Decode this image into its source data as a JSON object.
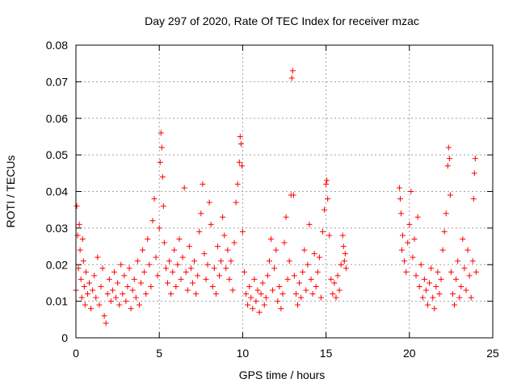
{
  "chart_data": {
    "type": "scatter",
    "title": "Day 297 of 2020, Rate Of TEC Index for receiver mzac",
    "xlabel": "GPS time / hours",
    "ylabel": "ROTI / TECUs",
    "xlim": [
      0,
      25
    ],
    "ylim": [
      0,
      0.08
    ],
    "xticks": [
      0,
      5,
      10,
      15,
      20,
      25
    ],
    "xtick_labels": [
      "0",
      "5",
      "10",
      "15",
      "20",
      "25"
    ],
    "yticks": [
      0,
      0.01,
      0.02,
      0.03,
      0.04,
      0.05,
      0.06,
      0.07,
      0.08
    ],
    "ytick_labels": [
      "0",
      "0.01",
      "0.02",
      "0.03",
      "0.04",
      "0.05",
      "0.06",
      "0.07",
      "0.08"
    ],
    "grid": true,
    "marker": "+",
    "color": "#ff0000",
    "series": [
      {
        "points": [
          [
            0.0,
            0.013
          ],
          [
            0.05,
            0.036
          ],
          [
            0.1,
            0.028
          ],
          [
            0.15,
            0.019
          ],
          [
            0.2,
            0.031
          ],
          [
            0.25,
            0.024
          ],
          [
            0.3,
            0.016
          ],
          [
            0.35,
            0.011
          ],
          [
            0.4,
            0.027
          ],
          [
            0.45,
            0.021
          ],
          [
            0.5,
            0.014
          ],
          [
            0.55,
            0.009
          ],
          [
            0.6,
            0.018
          ],
          [
            0.7,
            0.012
          ],
          [
            0.8,
            0.015
          ],
          [
            0.9,
            0.008
          ],
          [
            1.0,
            0.013
          ],
          [
            1.1,
            0.017
          ],
          [
            1.2,
            0.011
          ],
          [
            1.3,
            0.022
          ],
          [
            1.4,
            0.009
          ],
          [
            1.5,
            0.014
          ],
          [
            1.6,
            0.019
          ],
          [
            1.7,
            0.006
          ],
          [
            1.8,
            0.004
          ],
          [
            1.9,
            0.012
          ],
          [
            2.0,
            0.016
          ],
          [
            2.1,
            0.01
          ],
          [
            2.2,
            0.013
          ],
          [
            2.3,
            0.018
          ],
          [
            2.4,
            0.011
          ],
          [
            2.5,
            0.015
          ],
          [
            2.6,
            0.009
          ],
          [
            2.7,
            0.02
          ],
          [
            2.8,
            0.012
          ],
          [
            2.9,
            0.017
          ],
          [
            3.0,
            0.01
          ],
          [
            3.1,
            0.014
          ],
          [
            3.2,
            0.019
          ],
          [
            3.3,
            0.008
          ],
          [
            3.4,
            0.013
          ],
          [
            3.5,
            0.016
          ],
          [
            3.6,
            0.011
          ],
          [
            3.7,
            0.021
          ],
          [
            3.8,
            0.009
          ],
          [
            3.9,
            0.015
          ],
          [
            4.0,
            0.024
          ],
          [
            4.1,
            0.018
          ],
          [
            4.2,
            0.012
          ],
          [
            4.3,
            0.027
          ],
          [
            4.4,
            0.02
          ],
          [
            4.5,
            0.014
          ],
          [
            4.6,
            0.032
          ],
          [
            4.7,
            0.038
          ],
          [
            4.8,
            0.022
          ],
          [
            4.9,
            0.017
          ],
          [
            5.0,
            0.03
          ],
          [
            5.05,
            0.048
          ],
          [
            5.1,
            0.056
          ],
          [
            5.15,
            0.052
          ],
          [
            5.2,
            0.044
          ],
          [
            5.25,
            0.036
          ],
          [
            5.3,
            0.026
          ],
          [
            5.4,
            0.019
          ],
          [
            5.5,
            0.015
          ],
          [
            5.6,
            0.021
          ],
          [
            5.7,
            0.012
          ],
          [
            5.8,
            0.018
          ],
          [
            5.9,
            0.024
          ],
          [
            6.0,
            0.014
          ],
          [
            6.1,
            0.02
          ],
          [
            6.2,
            0.027
          ],
          [
            6.3,
            0.016
          ],
          [
            6.4,
            0.022
          ],
          [
            6.5,
            0.041
          ],
          [
            6.6,
            0.018
          ],
          [
            6.7,
            0.013
          ],
          [
            6.8,
            0.025
          ],
          [
            6.9,
            0.019
          ],
          [
            7.0,
            0.015
          ],
          [
            7.1,
            0.021
          ],
          [
            7.2,
            0.012
          ],
          [
            7.3,
            0.017
          ],
          [
            7.4,
            0.029
          ],
          [
            7.5,
            0.034
          ],
          [
            7.6,
            0.042
          ],
          [
            7.7,
            0.023
          ],
          [
            7.8,
            0.016
          ],
          [
            7.9,
            0.02
          ],
          [
            8.0,
            0.037
          ],
          [
            8.1,
            0.031
          ],
          [
            8.2,
            0.014
          ],
          [
            8.3,
            0.019
          ],
          [
            8.4,
            0.012
          ],
          [
            8.5,
            0.025
          ],
          [
            8.6,
            0.017
          ],
          [
            8.7,
            0.021
          ],
          [
            8.8,
            0.033
          ],
          [
            8.9,
            0.028
          ],
          [
            9.0,
            0.019
          ],
          [
            9.1,
            0.024
          ],
          [
            9.2,
            0.016
          ],
          [
            9.3,
            0.021
          ],
          [
            9.4,
            0.013
          ],
          [
            9.5,
            0.026
          ],
          [
            9.6,
            0.037
          ],
          [
            9.7,
            0.042
          ],
          [
            9.8,
            0.048
          ],
          [
            9.85,
            0.055
          ],
          [
            9.9,
            0.053
          ],
          [
            9.95,
            0.047
          ],
          [
            10.0,
            0.029
          ],
          [
            10.1,
            0.018
          ],
          [
            10.2,
            0.012
          ],
          [
            10.3,
            0.009
          ],
          [
            10.4,
            0.014
          ],
          [
            10.5,
            0.011
          ],
          [
            10.6,
            0.008
          ],
          [
            10.7,
            0.016
          ],
          [
            10.8,
            0.01
          ],
          [
            10.9,
            0.013
          ],
          [
            11.0,
            0.007
          ],
          [
            11.1,
            0.012
          ],
          [
            11.2,
            0.015
          ],
          [
            11.3,
            0.009
          ],
          [
            11.4,
            0.011
          ],
          [
            11.5,
            0.017
          ],
          [
            11.6,
            0.021
          ],
          [
            11.7,
            0.027
          ],
          [
            11.8,
            0.013
          ],
          [
            11.9,
            0.019
          ],
          [
            12.0,
            0.024
          ],
          [
            12.1,
            0.01
          ],
          [
            12.2,
            0.014
          ],
          [
            12.3,
            0.008
          ],
          [
            12.4,
            0.012
          ],
          [
            12.5,
            0.026
          ],
          [
            12.6,
            0.033
          ],
          [
            12.7,
            0.016
          ],
          [
            12.8,
            0.021
          ],
          [
            12.9,
            0.039
          ],
          [
            12.95,
            0.071
          ],
          [
            13.0,
            0.073
          ],
          [
            13.05,
            0.039
          ],
          [
            13.1,
            0.017
          ],
          [
            13.2,
            0.012
          ],
          [
            13.3,
            0.009
          ],
          [
            13.4,
            0.015
          ],
          [
            13.5,
            0.011
          ],
          [
            13.6,
            0.018
          ],
          [
            13.7,
            0.024
          ],
          [
            13.8,
            0.013
          ],
          [
            13.9,
            0.02
          ],
          [
            14.0,
            0.031
          ],
          [
            14.1,
            0.016
          ],
          [
            14.2,
            0.012
          ],
          [
            14.3,
            0.023
          ],
          [
            14.4,
            0.014
          ],
          [
            14.5,
            0.018
          ],
          [
            14.6,
            0.022
          ],
          [
            14.7,
            0.011
          ],
          [
            14.8,
            0.029
          ],
          [
            14.9,
            0.035
          ],
          [
            15.0,
            0.042
          ],
          [
            15.05,
            0.043
          ],
          [
            15.1,
            0.038
          ],
          [
            15.2,
            0.028
          ],
          [
            15.3,
            0.016
          ],
          [
            15.4,
            0.012
          ],
          [
            15.5,
            0.015
          ],
          [
            15.6,
            0.011
          ],
          [
            15.7,
            0.017
          ],
          [
            15.8,
            0.013
          ],
          [
            15.9,
            0.02
          ],
          [
            16.0,
            0.028
          ],
          [
            16.05,
            0.025
          ],
          [
            16.1,
            0.021
          ],
          [
            16.15,
            0.023
          ],
          [
            16.2,
            0.019
          ],
          [
            19.4,
            0.041
          ],
          [
            19.45,
            0.038
          ],
          [
            19.5,
            0.034
          ],
          [
            19.55,
            0.024
          ],
          [
            19.6,
            0.028
          ],
          [
            19.7,
            0.021
          ],
          [
            19.8,
            0.018
          ],
          [
            19.9,
            0.026
          ],
          [
            20.0,
            0.031
          ],
          [
            20.1,
            0.04
          ],
          [
            20.2,
            0.022
          ],
          [
            20.3,
            0.027
          ],
          [
            20.4,
            0.017
          ],
          [
            20.5,
            0.033
          ],
          [
            20.6,
            0.014
          ],
          [
            20.7,
            0.02
          ],
          [
            20.8,
            0.011
          ],
          [
            20.9,
            0.016
          ],
          [
            21.0,
            0.013
          ],
          [
            21.1,
            0.009
          ],
          [
            21.2,
            0.015
          ],
          [
            21.3,
            0.019
          ],
          [
            21.4,
            0.011
          ],
          [
            21.5,
            0.008
          ],
          [
            21.6,
            0.014
          ],
          [
            21.7,
            0.018
          ],
          [
            21.8,
            0.012
          ],
          [
            21.9,
            0.016
          ],
          [
            22.0,
            0.024
          ],
          [
            22.1,
            0.029
          ],
          [
            22.2,
            0.034
          ],
          [
            22.3,
            0.047
          ],
          [
            22.35,
            0.052
          ],
          [
            22.4,
            0.049
          ],
          [
            22.45,
            0.039
          ],
          [
            22.5,
            0.018
          ],
          [
            22.6,
            0.012
          ],
          [
            22.7,
            0.009
          ],
          [
            22.8,
            0.016
          ],
          [
            22.9,
            0.021
          ],
          [
            23.0,
            0.011
          ],
          [
            23.1,
            0.014
          ],
          [
            23.2,
            0.027
          ],
          [
            23.3,
            0.019
          ],
          [
            23.4,
            0.013
          ],
          [
            23.5,
            0.024
          ],
          [
            23.6,
            0.017
          ],
          [
            23.7,
            0.011
          ],
          [
            23.8,
            0.021
          ],
          [
            23.85,
            0.038
          ],
          [
            23.9,
            0.045
          ],
          [
            23.95,
            0.049
          ],
          [
            24.0,
            0.018
          ]
        ]
      }
    ]
  }
}
